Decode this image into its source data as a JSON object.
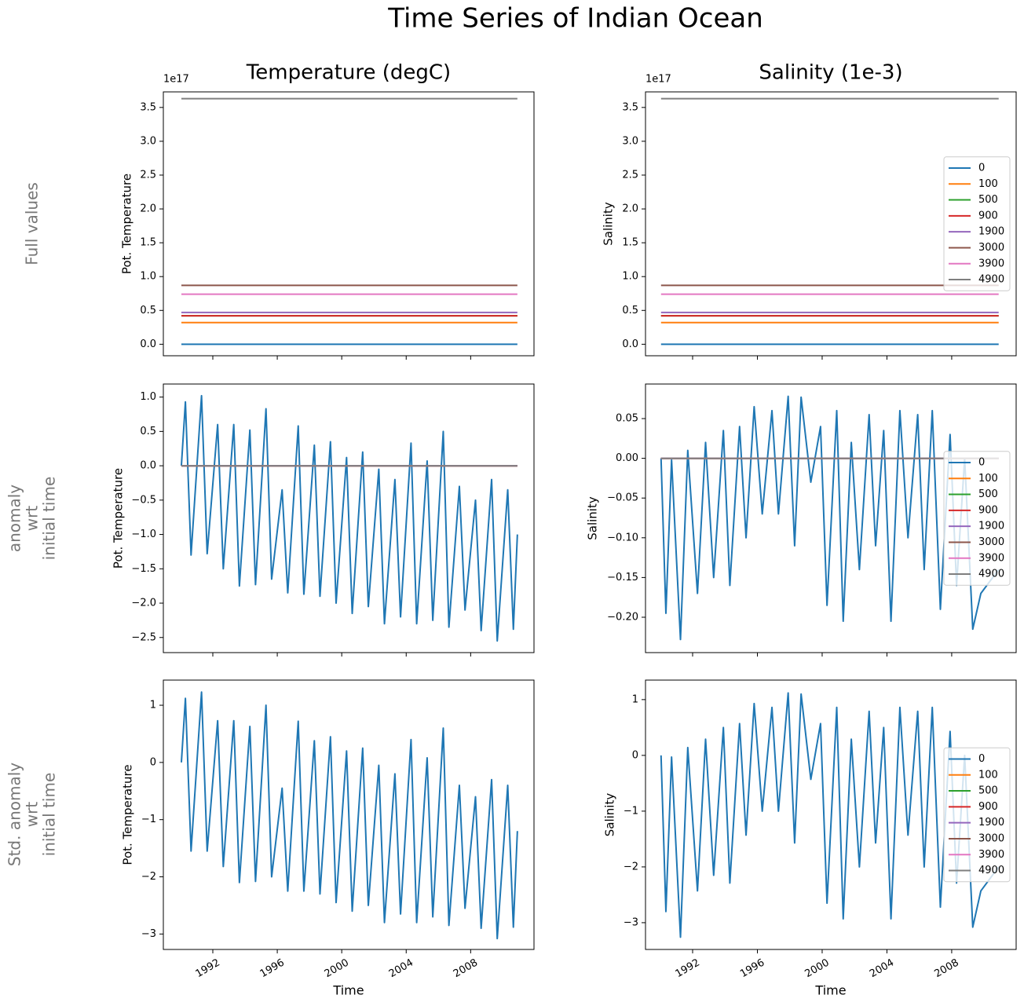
{
  "title": "Time Series of Indian Ocean",
  "row_labels": [
    [
      "Full values"
    ],
    [
      "anomaly",
      "wrt",
      "initial time"
    ],
    [
      "Std. anomaly",
      "wrt",
      "initial time"
    ]
  ],
  "chart_data": [
    {
      "type": "line",
      "title": "Temperature (degC)",
      "ylabel": "Pot. Temperature",
      "y_offset": "1e17",
      "xlim": [
        1988.93,
        2011.93
      ],
      "xticks": [
        1992,
        1996,
        2000,
        2004,
        2008
      ],
      "show_xtick_labels": false,
      "ylim": [
        -0.17,
        3.73
      ],
      "yticks": [
        {
          "value": 0,
          "label": "0.0"
        },
        0.5,
        {
          "value": 1,
          "label": "1.0"
        },
        1.5,
        {
          "value": 2,
          "label": "2.0"
        },
        2.5,
        {
          "value": 3,
          "label": "3.0"
        },
        3.5
      ],
      "series": [
        {
          "color": "#1f77b4",
          "x": [
            1990.05,
            2010.9
          ],
          "values": [
            0,
            0
          ]
        },
        {
          "color": "#ff7f0e",
          "x": [
            1990.05,
            2010.9
          ],
          "values": [
            0.32,
            0.32
          ]
        },
        {
          "color": "#2ca02c",
          "x": [
            1990.05,
            2010.9
          ],
          "values": [
            0.42,
            0.42
          ]
        },
        {
          "color": "#d62728",
          "x": [
            1990.05,
            2010.9
          ],
          "values": [
            0.42,
            0.42
          ]
        },
        {
          "color": "#9467bd",
          "x": [
            1990.05,
            2010.9
          ],
          "values": [
            0.47,
            0.47
          ]
        },
        {
          "color": "#8c564b",
          "x": [
            1990.05,
            2010.9
          ],
          "values": [
            0.87,
            0.87
          ]
        },
        {
          "color": "#e377c2",
          "x": [
            1990.05,
            2010.9
          ],
          "values": [
            0.74,
            0.74
          ]
        },
        {
          "color": "#7f7f7f",
          "x": [
            1990.05,
            2010.9
          ],
          "values": [
            3.63,
            3.63
          ]
        }
      ]
    },
    {
      "type": "line",
      "title": "Salinity (1e-3)",
      "ylabel": "Salinity",
      "y_offset": "1e17",
      "xlim": [
        1989.09,
        2011.98
      ],
      "xticks": [
        1992,
        1996,
        2000,
        2004,
        2008
      ],
      "show_xtick_labels": false,
      "ylim": [
        -0.17,
        3.73
      ],
      "yticks": [
        {
          "value": 0,
          "label": "0.0"
        },
        0.5,
        {
          "value": 1,
          "label": "1.0"
        },
        1.5,
        {
          "value": 2,
          "label": "2.0"
        },
        2.5,
        {
          "value": 3,
          "label": "3.0"
        },
        3.5
      ],
      "legend": "center right",
      "series": [
        {
          "name": "0",
          "color": "#1f77b4",
          "x": [
            1990.05,
            2010.9
          ],
          "values": [
            0,
            0
          ]
        },
        {
          "name": "100",
          "color": "#ff7f0e",
          "x": [
            1990.05,
            2010.9
          ],
          "values": [
            0.32,
            0.32
          ]
        },
        {
          "name": "500",
          "color": "#2ca02c",
          "x": [
            1990.05,
            2010.9
          ],
          "values": [
            0.42,
            0.42
          ]
        },
        {
          "name": "900",
          "color": "#d62728",
          "x": [
            1990.05,
            2010.9
          ],
          "values": [
            0.42,
            0.42
          ]
        },
        {
          "name": "1900",
          "color": "#9467bd",
          "x": [
            1990.05,
            2010.9
          ],
          "values": [
            0.47,
            0.47
          ]
        },
        {
          "name": "3000",
          "color": "#8c564b",
          "x": [
            1990.05,
            2010.9
          ],
          "values": [
            0.87,
            0.87
          ]
        },
        {
          "name": "3900",
          "color": "#e377c2",
          "x": [
            1990.05,
            2010.9
          ],
          "values": [
            0.74,
            0.74
          ]
        },
        {
          "name": "4900",
          "color": "#7f7f7f",
          "x": [
            1990.05,
            2010.9
          ],
          "values": [
            3.63,
            3.63
          ]
        }
      ]
    },
    {
      "type": "line",
      "ylabel": "Pot. Temperature",
      "xlim": [
        1988.93,
        2011.93
      ],
      "xticks": [
        1992,
        1996,
        2000,
        2004,
        2008
      ],
      "show_xtick_labels": false,
      "ylim": [
        -2.72,
        1.19
      ],
      "yticks": [
        {
          "value": -2.5,
          "label": "−2.5"
        },
        {
          "value": -2,
          "label": "−2.0"
        },
        {
          "value": -1.5,
          "label": "−1.5"
        },
        {
          "value": -1,
          "label": "−1.0"
        },
        {
          "value": -0.5,
          "label": "−0.5"
        },
        {
          "value": 0,
          "label": "0.0"
        },
        0.5,
        {
          "value": 1,
          "label": "1.0"
        }
      ],
      "series": [
        {
          "color": "#1f77b4",
          "x": [
            1990.05,
            1990.3,
            1990.65,
            1991.3,
            1991.65,
            1992.3,
            1992.65,
            1993.3,
            1993.65,
            1994.3,
            1994.65,
            1995.3,
            1995.65,
            1996.3,
            1996.65,
            1997.3,
            1997.65,
            1998.3,
            1998.65,
            1999.3,
            1999.65,
            2000.3,
            2000.65,
            2001.3,
            2001.65,
            2002.3,
            2002.65,
            2003.3,
            2003.65,
            2004.3,
            2004.65,
            2005.3,
            2005.65,
            2006.3,
            2006.65,
            2007.3,
            2007.65,
            2008.3,
            2008.65,
            2009.3,
            2009.65,
            2010.3,
            2010.65,
            2010.9
          ],
          "values": [
            0,
            0.93,
            -1.3,
            1.02,
            -1.28,
            0.6,
            -1.5,
            0.6,
            -1.75,
            0.52,
            -1.73,
            0.83,
            -1.65,
            -0.35,
            -1.85,
            0.58,
            -1.87,
            0.3,
            -1.9,
            0.35,
            -2.0,
            0.12,
            -2.15,
            0.2,
            -2.05,
            -0.05,
            -2.3,
            -0.2,
            -2.2,
            0.33,
            -2.3,
            0.07,
            -2.25,
            0.5,
            -2.35,
            -0.3,
            -2.1,
            -0.5,
            -2.4,
            -0.2,
            -2.55,
            -0.35,
            -2.38,
            -1.0
          ]
        },
        {
          "color": "#ff7f0e",
          "x": [
            1990.05,
            2010.9
          ],
          "values": [
            0,
            0
          ]
        },
        {
          "color": "#2ca02c",
          "x": [
            1990.05,
            2010.9
          ],
          "values": [
            0,
            0
          ]
        },
        {
          "color": "#d62728",
          "x": [
            1990.05,
            2010.9
          ],
          "values": [
            0,
            0
          ]
        },
        {
          "color": "#9467bd",
          "x": [
            1990.05,
            2010.9
          ],
          "values": [
            0,
            0
          ]
        },
        {
          "color": "#8c564b",
          "x": [
            1990.05,
            2010.9
          ],
          "values": [
            0,
            0
          ]
        },
        {
          "color": "#e377c2",
          "x": [
            1990.05,
            2010.9
          ],
          "values": [
            0,
            0
          ]
        },
        {
          "color": "#7f7f7f",
          "x": [
            1990.05,
            2010.9
          ],
          "values": [
            0,
            0
          ]
        }
      ]
    },
    {
      "type": "line",
      "ylabel": "Salinity",
      "xlim": [
        1989.09,
        2011.98
      ],
      "xticks": [
        1992,
        1996,
        2000,
        2004,
        2008
      ],
      "show_xtick_labels": false,
      "ylim": [
        -0.2445,
        0.0935
      ],
      "yticks": [
        {
          "value": -0.2,
          "label": "−0.20"
        },
        {
          "value": -0.15,
          "label": "−0.15"
        },
        {
          "value": -0.1,
          "label": "−0.10"
        },
        {
          "value": -0.05,
          "label": "−0.05"
        },
        {
          "value": 0,
          "label": "0.00"
        },
        0.05
      ],
      "legend": "center right",
      "series": [
        {
          "name": "0",
          "color": "#1f77b4",
          "x": [
            1990.05,
            1990.35,
            1990.7,
            1991.25,
            1991.7,
            1992.3,
            1992.8,
            1993.3,
            1993.9,
            1994.3,
            1994.9,
            1995.3,
            1995.8,
            1996.3,
            1996.9,
            1997.3,
            1997.9,
            1998.3,
            1998.7,
            1999.3,
            1999.9,
            2000.3,
            2000.9,
            2001.3,
            2001.8,
            2002.3,
            2002.9,
            2003.3,
            2003.8,
            2004.25,
            2004.8,
            2005.3,
            2005.9,
            2006.3,
            2006.8,
            2007.3,
            2007.9,
            2008.3,
            2008.8,
            2009.3,
            2009.8,
            2010.9
          ],
          "values": [
            0,
            -0.195,
            -0.002,
            -0.228,
            0.01,
            -0.17,
            0.02,
            -0.15,
            0.035,
            -0.16,
            0.04,
            -0.1,
            0.065,
            -0.07,
            0.06,
            -0.07,
            0.078,
            -0.11,
            0.077,
            -0.03,
            0.04,
            -0.185,
            0.06,
            -0.205,
            0.02,
            -0.14,
            0.055,
            -0.11,
            0.035,
            -0.205,
            0.06,
            -0.1,
            0.055,
            -0.14,
            0.06,
            -0.19,
            0.03,
            -0.16,
            0,
            -0.215,
            -0.17,
            -0.14
          ]
        },
        {
          "name": "100",
          "color": "#ff7f0e",
          "x": [
            1990.05,
            2010.9
          ],
          "values": [
            0,
            0
          ]
        },
        {
          "name": "500",
          "color": "#2ca02c",
          "x": [
            1990.05,
            2010.9
          ],
          "values": [
            0,
            0
          ]
        },
        {
          "name": "900",
          "color": "#d62728",
          "x": [
            1990.05,
            2010.9
          ],
          "values": [
            0,
            0
          ]
        },
        {
          "name": "1900",
          "color": "#9467bd",
          "x": [
            1990.05,
            2010.9
          ],
          "values": [
            0,
            0
          ]
        },
        {
          "name": "3000",
          "color": "#8c564b",
          "x": [
            1990.05,
            2010.9
          ],
          "values": [
            0,
            0
          ]
        },
        {
          "name": "3900",
          "color": "#e377c2",
          "x": [
            1990.05,
            2010.9
          ],
          "values": [
            0,
            0
          ]
        },
        {
          "name": "4900",
          "color": "#7f7f7f",
          "x": [
            1990.05,
            2010.9
          ],
          "values": [
            0,
            0
          ]
        }
      ]
    },
    {
      "type": "line",
      "ylabel": "Pot. Temperature",
      "xlabel": "Time",
      "xlim": [
        1988.93,
        2011.93
      ],
      "xticks": [
        1992,
        1996,
        2000,
        2004,
        2008
      ],
      "show_xtick_labels": true,
      "ylim": [
        -3.27,
        1.44
      ],
      "yticks": [
        {
          "value": -3,
          "label": "−3"
        },
        {
          "value": -2,
          "label": "−2"
        },
        {
          "value": -1,
          "label": "−1"
        },
        0,
        1
      ],
      "series": [
        {
          "color": "#1f77b4",
          "x": [
            1990.05,
            1990.3,
            1990.65,
            1991.3,
            1991.65,
            1992.3,
            1992.65,
            1993.3,
            1993.65,
            1994.3,
            1994.65,
            1995.3,
            1995.65,
            1996.3,
            1996.65,
            1997.3,
            1997.65,
            1998.3,
            1998.65,
            1999.3,
            1999.65,
            2000.3,
            2000.65,
            2001.3,
            2001.65,
            2002.3,
            2002.65,
            2003.3,
            2003.65,
            2004.3,
            2004.65,
            2005.3,
            2005.65,
            2006.3,
            2006.65,
            2007.3,
            2007.65,
            2008.3,
            2008.65,
            2009.3,
            2009.65,
            2010.3,
            2010.65,
            2010.9
          ],
          "values": [
            0,
            1.12,
            -1.55,
            1.23,
            -1.55,
            0.73,
            -1.82,
            0.73,
            -2.1,
            0.63,
            -2.08,
            1.0,
            -2.0,
            -0.45,
            -2.25,
            0.72,
            -2.25,
            0.38,
            -2.3,
            0.45,
            -2.45,
            0.2,
            -2.6,
            0.25,
            -2.5,
            -0.05,
            -2.8,
            -0.2,
            -2.65,
            0.4,
            -2.8,
            0.08,
            -2.7,
            0.6,
            -2.85,
            -0.4,
            -2.55,
            -0.6,
            -2.9,
            -0.3,
            -3.08,
            -0.4,
            -2.88,
            -1.2
          ]
        }
      ]
    },
    {
      "type": "line",
      "ylabel": "Salinity",
      "xlabel": "Time",
      "xlim": [
        1989.09,
        2011.98
      ],
      "xticks": [
        1992,
        1996,
        2000,
        2004,
        2008
      ],
      "show_xtick_labels": true,
      "ylim": [
        -3.48,
        1.35
      ],
      "yticks": [
        {
          "value": -3,
          "label": "−3"
        },
        {
          "value": -2,
          "label": "−2"
        },
        {
          "value": -1,
          "label": "−1"
        },
        0,
        1
      ],
      "legend": "center right",
      "series": [
        {
          "name": "0",
          "color": "#1f77b4",
          "x": [
            1990.05,
            1990.35,
            1990.7,
            1991.25,
            1991.7,
            1992.3,
            1992.8,
            1993.3,
            1993.9,
            1994.3,
            1994.9,
            1995.3,
            1995.8,
            1996.3,
            1996.9,
            1997.3,
            1997.9,
            1998.3,
            1998.7,
            1999.3,
            1999.9,
            2000.3,
            2000.9,
            2001.3,
            2001.8,
            2002.3,
            2002.9,
            2003.3,
            2003.8,
            2004.25,
            2004.8,
            2005.3,
            2005.9,
            2006.3,
            2006.8,
            2007.3,
            2007.9,
            2008.3,
            2008.8,
            2009.3,
            2009.8,
            2010.9
          ],
          "values": [
            0,
            -2.8,
            -0.03,
            -3.26,
            0.14,
            -2.43,
            0.29,
            -2.15,
            0.5,
            -2.29,
            0.57,
            -1.43,
            0.93,
            -1.0,
            0.86,
            -1.0,
            1.12,
            -1.57,
            1.1,
            -0.43,
            0.57,
            -2.65,
            0.86,
            -2.93,
            0.29,
            -2.0,
            0.79,
            -1.57,
            0.5,
            -2.93,
            0.86,
            -1.43,
            0.79,
            -2.0,
            0.86,
            -2.72,
            0.43,
            -2.29,
            0,
            -3.08,
            -2.43,
            -2.0
          ]
        },
        {
          "name": "100",
          "color": "#ff7f0e",
          "x": [],
          "values": []
        },
        {
          "name": "500",
          "color": "#2ca02c",
          "x": [],
          "values": []
        },
        {
          "name": "900",
          "color": "#d62728",
          "x": [],
          "values": []
        },
        {
          "name": "1900",
          "color": "#9467bd",
          "x": [],
          "values": []
        },
        {
          "name": "3000",
          "color": "#8c564b",
          "x": [],
          "values": []
        },
        {
          "name": "3900",
          "color": "#e377c2",
          "x": [],
          "values": []
        },
        {
          "name": "4900",
          "color": "#7f7f7f",
          "x": [],
          "values": []
        }
      ]
    }
  ]
}
